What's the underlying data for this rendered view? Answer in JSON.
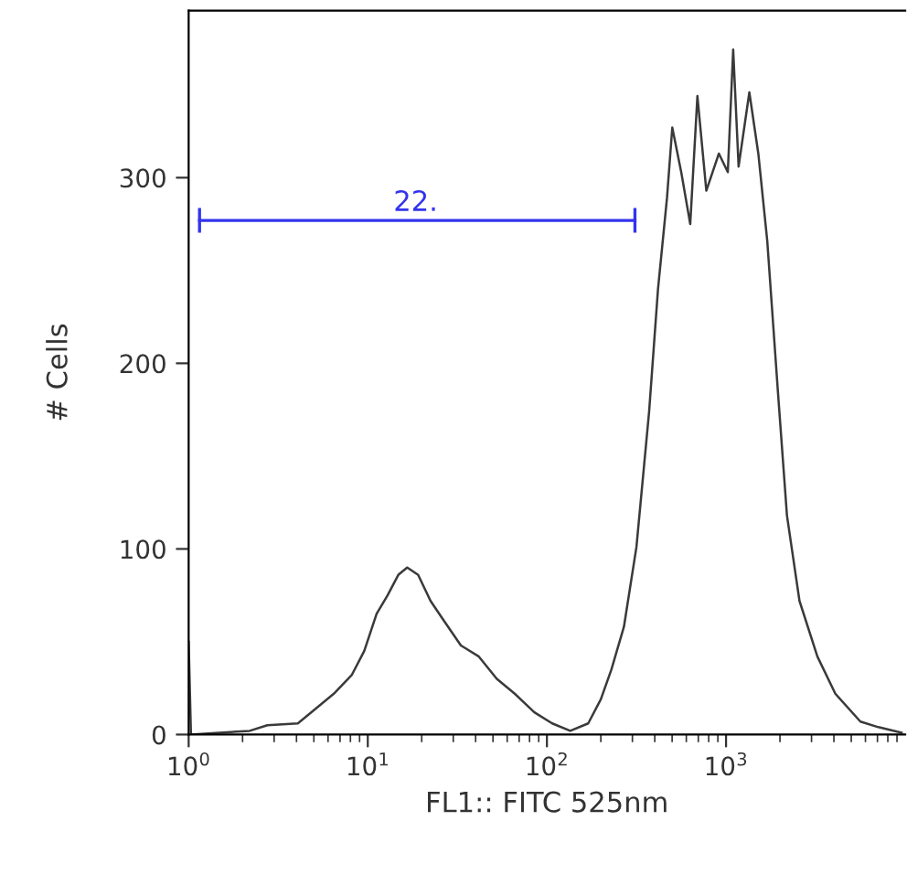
{
  "chart_data": {
    "type": "line",
    "xlabel": "FL1:: FITC 525nm",
    "ylabel": "# Cells",
    "log": "x",
    "xlim": [
      1,
      10000
    ],
    "ylim": [
      0,
      390
    ],
    "xticks": [
      {
        "value": 1,
        "label": "10$^{0}$"
      },
      {
        "value": 10,
        "label": "10$^{1}$"
      },
      {
        "value": 100,
        "label": "10$^{2}$"
      },
      {
        "value": 1000,
        "label": "10$^{3}$"
      }
    ],
    "yticks": [
      0,
      100,
      200,
      300
    ],
    "grid": false,
    "legend": false,
    "series": [
      {
        "color": "#3a3a3a",
        "x": [
          1,
          1.03,
          1.48,
          2.19,
          2.75,
          4.07,
          5.13,
          6.46,
          8.13,
          9.55,
          11.2,
          12.9,
          14.8,
          16.6,
          19.1,
          22.4,
          26.3,
          33.1,
          41.7,
          52.5,
          66.1,
          85.1,
          107,
          135,
          170,
          200,
          229,
          269,
          316,
          372,
          417,
          468,
          501,
          562,
          631,
          692,
          776,
          912,
          1023,
          1096,
          1175,
          1349,
          1514,
          1698,
          1950,
          2188,
          2570,
          3236,
          4074,
          5623,
          7079,
          9550
        ],
        "values": [
          50,
          0,
          1,
          2,
          5,
          6,
          14,
          22,
          32,
          45,
          65,
          75,
          86,
          90,
          86,
          72,
          62,
          48,
          42,
          30,
          22,
          12,
          6,
          2,
          6,
          19,
          35,
          58,
          101,
          174,
          240,
          289,
          327,
          303,
          275,
          344,
          293,
          313,
          303,
          369,
          306,
          346,
          313,
          266,
          184,
          118,
          72,
          42,
          22,
          7,
          4,
          1
        ]
      },
      {
        "type": "line",
        "color": "#3333ee",
        "x": [
          1.15,
          310
        ],
        "values": [
          277,
          277
        ]
      }
    ],
    "annotations": [
      {
        "text": "22.",
        "x": 18.5,
        "y": 279
      }
    ]
  }
}
